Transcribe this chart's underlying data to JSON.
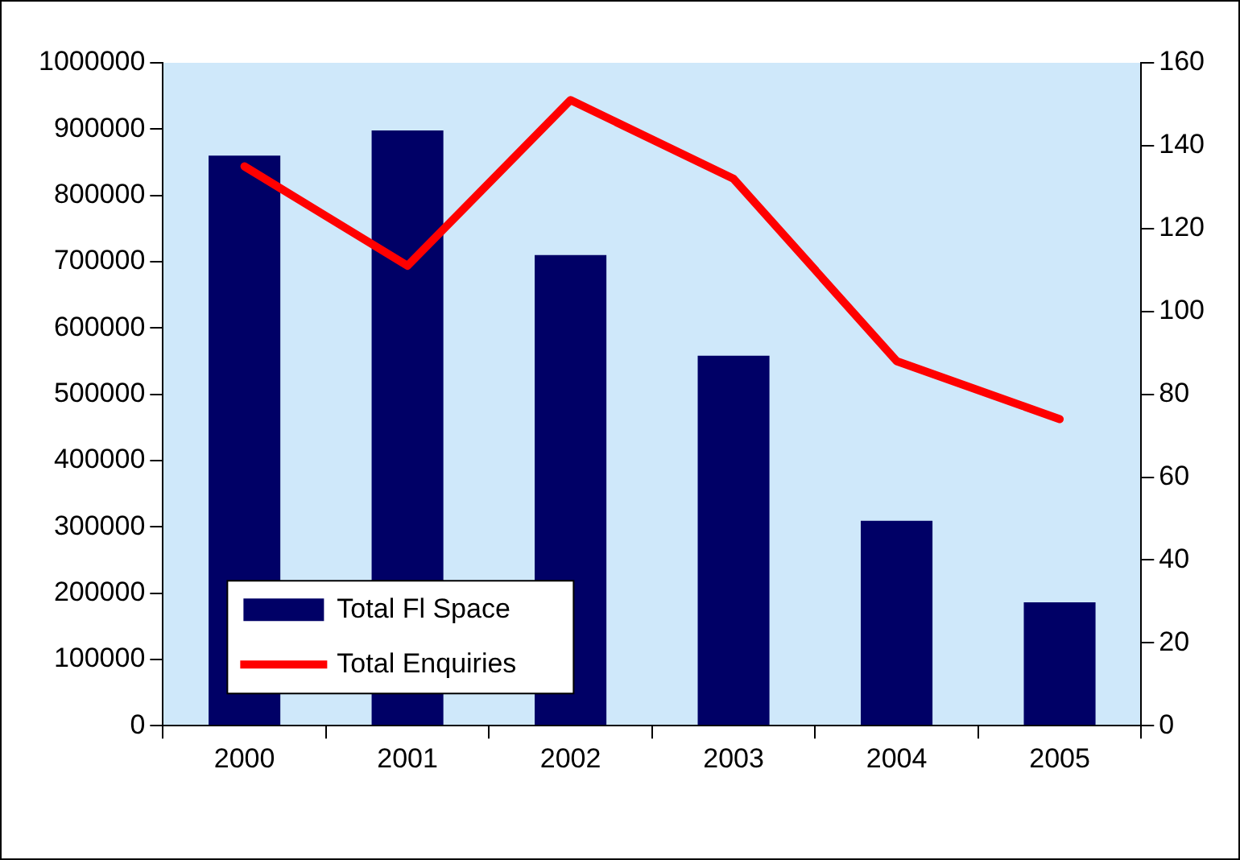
{
  "chart_data": {
    "type": "bar",
    "categories": [
      "2000",
      "2001",
      "2002",
      "2003",
      "2004",
      "2005"
    ],
    "series": [
      {
        "name": "Total Fl Space",
        "color": "#000066",
        "values": [
          860000,
          898000,
          710000,
          558000,
          309000,
          186000
        ]
      },
      {
        "name": "Total Enquiries",
        "type": "line",
        "axis": "y2",
        "color": "#ff0000",
        "values": [
          135,
          111,
          151,
          132,
          88,
          74
        ]
      }
    ],
    "ylim": [
      0,
      1000000
    ],
    "yticks": [
      0,
      100000,
      200000,
      300000,
      400000,
      500000,
      600000,
      700000,
      800000,
      900000,
      1000000
    ],
    "y2lim": [
      0,
      160
    ],
    "y2ticks": [
      0,
      20,
      40,
      60,
      80,
      100,
      120,
      140,
      160
    ],
    "grid": false,
    "legend": "bottom left",
    "marker": "none",
    "line_style": "solid"
  }
}
